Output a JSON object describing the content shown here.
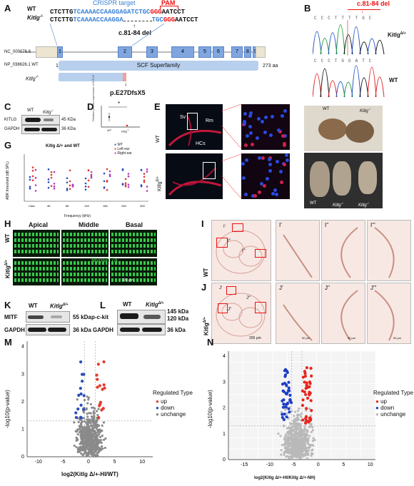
{
  "panels": {
    "a": "A",
    "b": "B",
    "c": "C",
    "d": "D",
    "e": "E",
    "f": "F",
    "g": "G",
    "h": "H",
    "i": "I",
    "j": "J",
    "k": "K",
    "l": "L",
    "m": "M",
    "n": "N"
  },
  "panelA": {
    "wt_label": "WT",
    "ko_label": "Kitlg",
    "ko_sup": "-/-",
    "crispr_target": "CRISPR target",
    "pam": "PAM",
    "wt_seq_black1": "CTCTTG",
    "wt_seq_blue": "TCAAAACCAAGGAGATCTGC",
    "wt_seq_red": "GGG",
    "wt_seq_black2": "AATCCT",
    "ko_seq_black1": "CTCTTG",
    "ko_seq_blue1": "TCAAAACCAAGGA",
    "ko_seq_blue2": "TGC",
    "ko_seq_red": "GGG",
    "ko_seq_black2": "AATCCT",
    "deletion": "c.81-84 del",
    "nc_label": "NC_000076.6",
    "np_label": "NP_038626.1 WT",
    "np_start": "1",
    "superfamily": "SCF Superfamily",
    "length": "273 aa",
    "ko_protein": "Kitlg",
    "ko_protein_sup": "-/-",
    "mutation": "p.E27DfsX5",
    "exons": [
      "1",
      "2",
      "3",
      "4",
      "5",
      "6",
      "7",
      "8",
      "9"
    ]
  },
  "panelB": {
    "title": "c.81-84 del",
    "top_label": "Kitlg",
    "top_sup": "Δ/+",
    "bottom_label": "WT",
    "top_bases": [
      "C",
      "C",
      "C",
      "T",
      "T",
      "T",
      "T",
      "G",
      "C"
    ],
    "bottom_bases": [
      "C",
      "C",
      "C",
      "T",
      "G",
      "G",
      "A",
      "T",
      "C"
    ]
  },
  "panelC": {
    "col_wt": "WT",
    "col_ko": "Kitlg",
    "col_ko_sup": "-/-",
    "row1": "KITLG",
    "row1_kda": "45 KDa",
    "row2": "GAPDH",
    "row2_kda": "36 KDa"
  },
  "panelD": {
    "ylabel": "Relative protein expression of KITLG",
    "x_wt": "WT",
    "x_ko": "Kitlg",
    "x_ko_sup": "-/-",
    "sig": "*"
  },
  "panelE": {
    "row1": "WT",
    "row2": "Kitlg",
    "row2_sup": "Δ/+",
    "sv": "Sv",
    "rm": "Rm",
    "hcs": "HCs"
  },
  "panelF": {
    "wt": "WT",
    "ko": "Kitlg",
    "ko_sup": "-/-",
    "b_wt": "WT",
    "b_ko1": "Kitlg",
    "b_ko1_sup": "-/-",
    "b_ko2": "Kitlg",
    "b_ko2_sup": "-/-"
  },
  "panelG": {
    "title": "Kitlg Δ/+ and WT",
    "ylabel": "ABR threshold (dB SPL)",
    "xlabel": "Frequency (kHz)",
    "legend": [
      "WT",
      "Left ear",
      "Right ear"
    ],
    "ticks": [
      "Click",
      "4K",
      "8K",
      "12K",
      "16K",
      "24K",
      "32K"
    ]
  },
  "panelH": {
    "apical": "Apical",
    "middle": "Middle",
    "basal": "Basal",
    "row1": "WT",
    "row2": "Kitlg",
    "row2_sup": "Δ/+",
    "stain": "Myosin 7a",
    "scale": "100 μm"
  },
  "panelI": {
    "row": "WT",
    "b1": "I'",
    "b2": "I''",
    "b3": "I'''",
    "z1": "I'",
    "z2": "I''",
    "z3": "I'''"
  },
  "panelJ": {
    "row": "Kitlg",
    "row_sup": "Δ/+",
    "b1": "J'",
    "b2": "J''",
    "b3": "J'''",
    "z1": "J'",
    "z2": "J''",
    "z3": "J'''",
    "scale_main": "200 μm",
    "scale_zoom": "50 μm"
  },
  "panelK": {
    "col_wt": "WT",
    "col_ko": "Kitlg",
    "col_ko_sup": "Δ/+",
    "row1": "MITF",
    "row1_kda": "55 kDa",
    "row2": "GAPDH",
    "row2_kda": "36 kDa"
  },
  "panelL": {
    "col_wt": "WT",
    "col_ko": "Kitlg",
    "col_ko_sup": "Δ/+",
    "row1": "p-c-kit",
    "row1_kda_a": "145 kDa",
    "row1_kda_b": "120 kDa",
    "row2": "GAPDH",
    "row2_kda": "36 kDa"
  },
  "volcanoM": {
    "ylabel": "-log10(p-value)",
    "xlabel": "log2(Kitlg Δ/+-HI/WT)",
    "xticks": [
      "-10",
      "-5",
      "0",
      "5",
      "10"
    ],
    "yticks": [
      "0",
      "1",
      "2",
      "3",
      "4"
    ],
    "legend_title": "Regulated Type",
    "legend": [
      "up",
      "down",
      "unchange"
    ],
    "colors": {
      "up": "#e23b2e",
      "down": "#2a4fb8",
      "unchange": "#8a8a8a"
    }
  },
  "volcanoN": {
    "ylabel": "-log10(p-value)",
    "xlabel": "log2(Kitlg Δ/+-HI/Kitlg Δ/+-NH)",
    "xticks": [
      "-15",
      "-10",
      "-5",
      "0",
      "5",
      "10"
    ],
    "yticks": [
      "0",
      "1",
      "2",
      "3",
      "4"
    ],
    "legend_title": "Regulated Type",
    "legend": [
      "up",
      "down",
      "unchange"
    ],
    "colors": {
      "up": "#e8251c",
      "down": "#1f3fc6",
      "unchange": "#b9b9b9"
    }
  }
}
